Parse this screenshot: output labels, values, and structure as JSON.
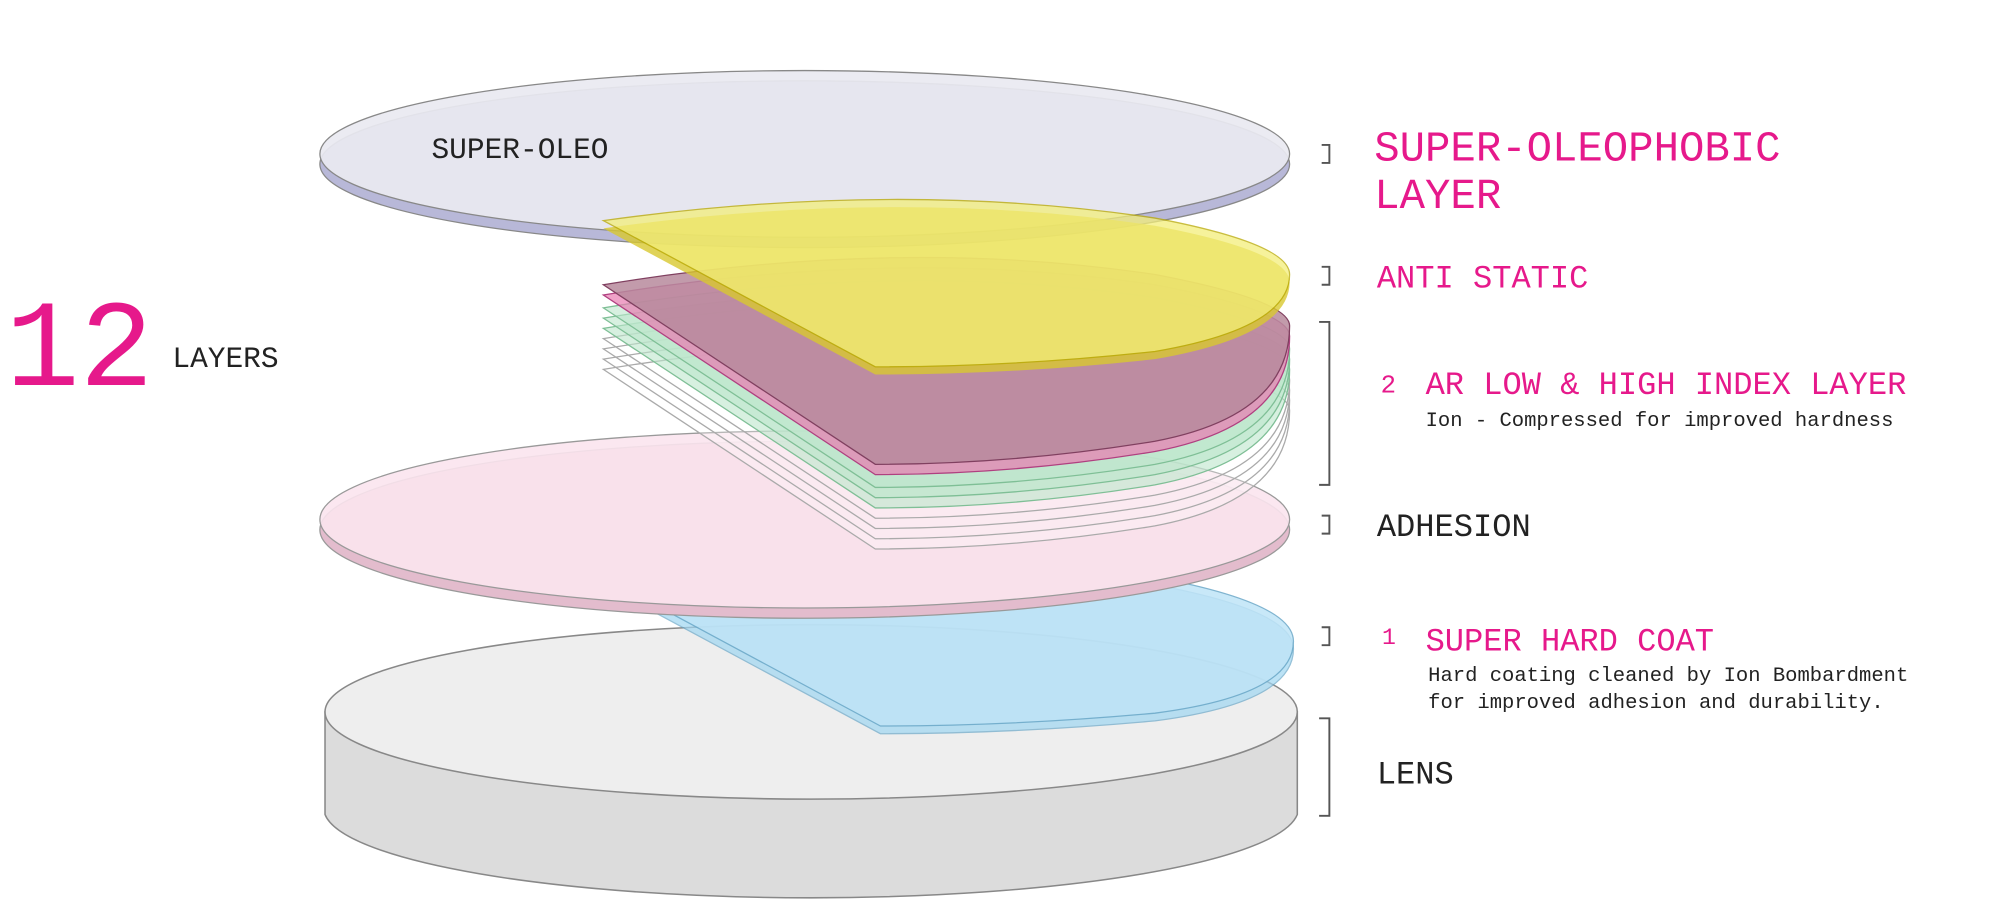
{
  "count": {
    "number": "12",
    "unit": "LAYERS"
  },
  "disc_label": "SUPER-OLEO",
  "layers": [
    {
      "title_lines": [
        "SUPER-OLEOPHOBIC",
        "LAYER"
      ]
    },
    {
      "title": "ANTI STATIC"
    },
    {
      "number": "2",
      "title": "AR LOW & HIGH INDEX LAYER",
      "description": [
        "Ion - Compressed for improved hardness"
      ]
    },
    {
      "title": "ADHESION"
    },
    {
      "number": "1",
      "title": "SUPER HARD COAT",
      "description": [
        "Hard coating cleaned by Ion Bombardment",
        "for improved adhesion and durability."
      ]
    },
    {
      "title": "LENS"
    }
  ]
}
